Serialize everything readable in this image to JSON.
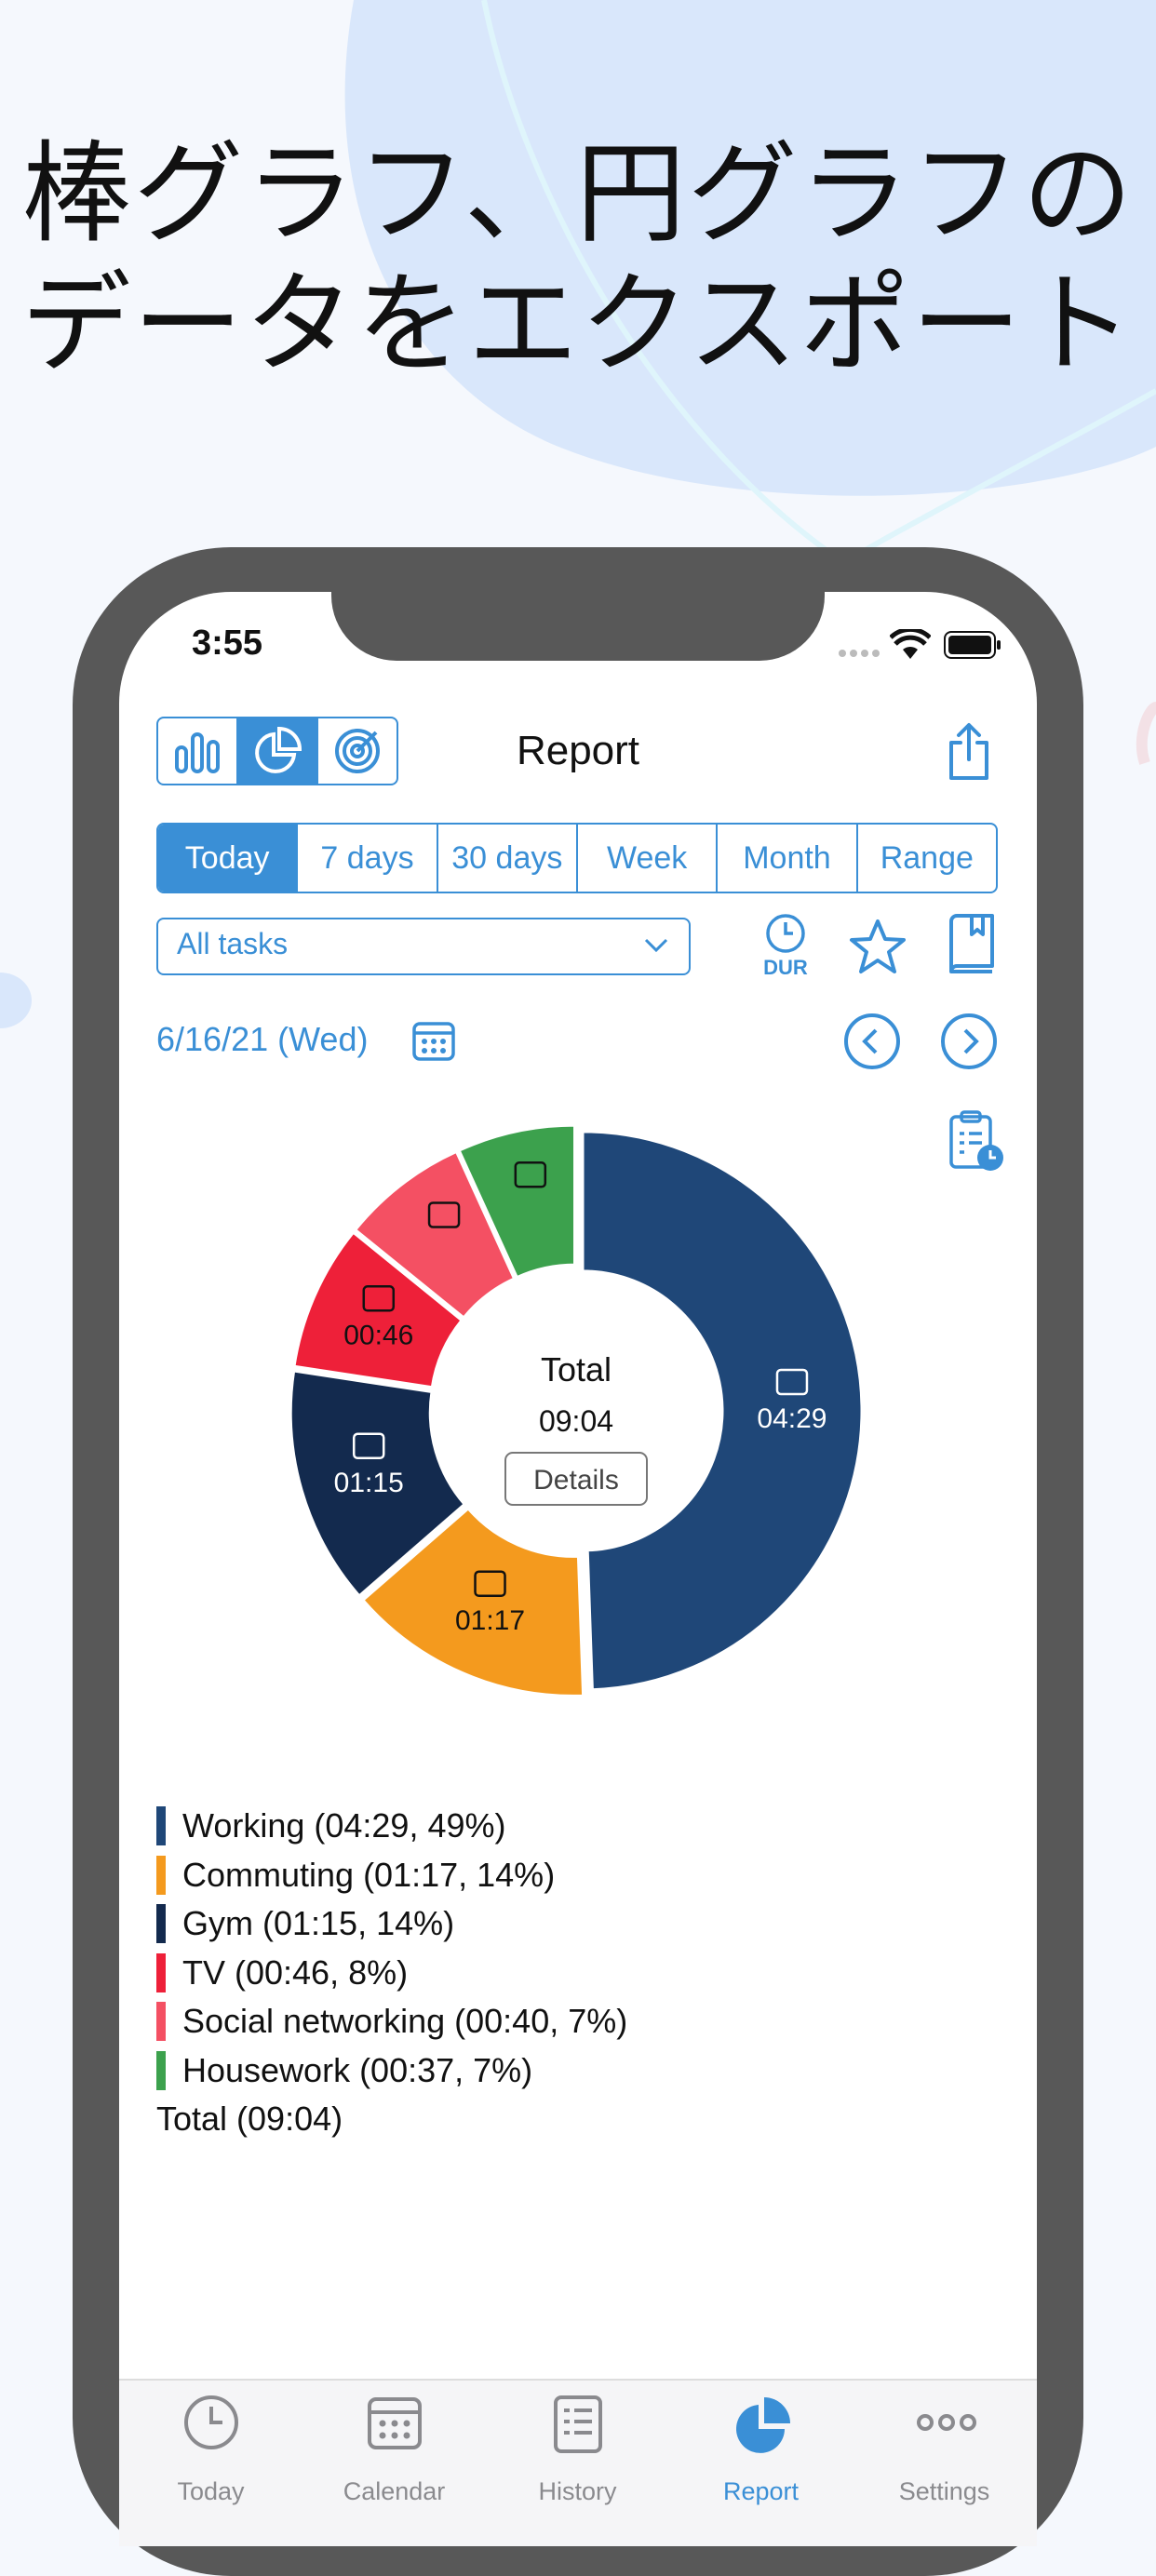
{
  "headline": {
    "line1": "棒グラフ、円グラフの",
    "line2": "データをエクスポート"
  },
  "status_bar": {
    "time": "3:55"
  },
  "header": {
    "title": "Report"
  },
  "range_tabs": [
    {
      "label": "Today",
      "active": true
    },
    {
      "label": "7 days",
      "active": false
    },
    {
      "label": "30 days",
      "active": false
    },
    {
      "label": "Week",
      "active": false
    },
    {
      "label": "Month",
      "active": false
    },
    {
      "label": "Range",
      "active": false
    }
  ],
  "filter": {
    "selected": "All tasks",
    "dur_label": "DUR"
  },
  "date_nav": {
    "date": "6/16/21 (Wed)"
  },
  "chart_data": {
    "type": "pie",
    "style": "donut",
    "center_label": "Total",
    "center_value": "09:04",
    "center_button": "Details",
    "slices": [
      {
        "name": "Working",
        "value_label": "04:29",
        "minutes": 269,
        "percent": 49,
        "color": "#1f4778",
        "icon": "document-edit-icon"
      },
      {
        "name": "Commuting",
        "value_label": "01:17",
        "minutes": 77,
        "percent": 14,
        "color": "#f49a1e",
        "icon": "car-icon"
      },
      {
        "name": "Gym",
        "value_label": "01:15",
        "minutes": 75,
        "percent": 14,
        "color": "#132a4e",
        "icon": "treadmill-icon"
      },
      {
        "name": "TV",
        "value_label": "00:46",
        "minutes": 46,
        "percent": 8,
        "color": "#ee2039",
        "icon": "tv-icon"
      },
      {
        "name": "Social networking",
        "value_label": "00:40",
        "minutes": 40,
        "percent": 7,
        "color": "#f45063",
        "icon": "facebook-icon"
      },
      {
        "name": "Housework",
        "value_label": "00:37",
        "minutes": 37,
        "percent": 7,
        "color": "#3ca14d",
        "icon": "broom-icon"
      }
    ]
  },
  "legend": {
    "items": [
      {
        "text": "Working (04:29, 49%)",
        "color": "#1f4778"
      },
      {
        "text": "Commuting (01:17, 14%)",
        "color": "#f49a1e"
      },
      {
        "text": "Gym (01:15, 14%)",
        "color": "#132a4e"
      },
      {
        "text": "TV (00:46, 8%)",
        "color": "#ee2039"
      },
      {
        "text": "Social networking (00:40, 7%)",
        "color": "#f45063"
      },
      {
        "text": "Housework (00:37, 7%)",
        "color": "#3ca14d"
      }
    ],
    "total": "Total (09:04)"
  },
  "tabbar": {
    "items": [
      {
        "label": "Today",
        "icon": "clock-icon",
        "active": false
      },
      {
        "label": "Calendar",
        "icon": "calendar-icon",
        "active": false
      },
      {
        "label": "History",
        "icon": "history-icon",
        "active": false
      },
      {
        "label": "Report",
        "icon": "pie-chart-icon",
        "active": true
      },
      {
        "label": "Settings",
        "icon": "more-icon",
        "active": false
      }
    ]
  },
  "colors": {
    "accent": "#3a8fd6"
  }
}
